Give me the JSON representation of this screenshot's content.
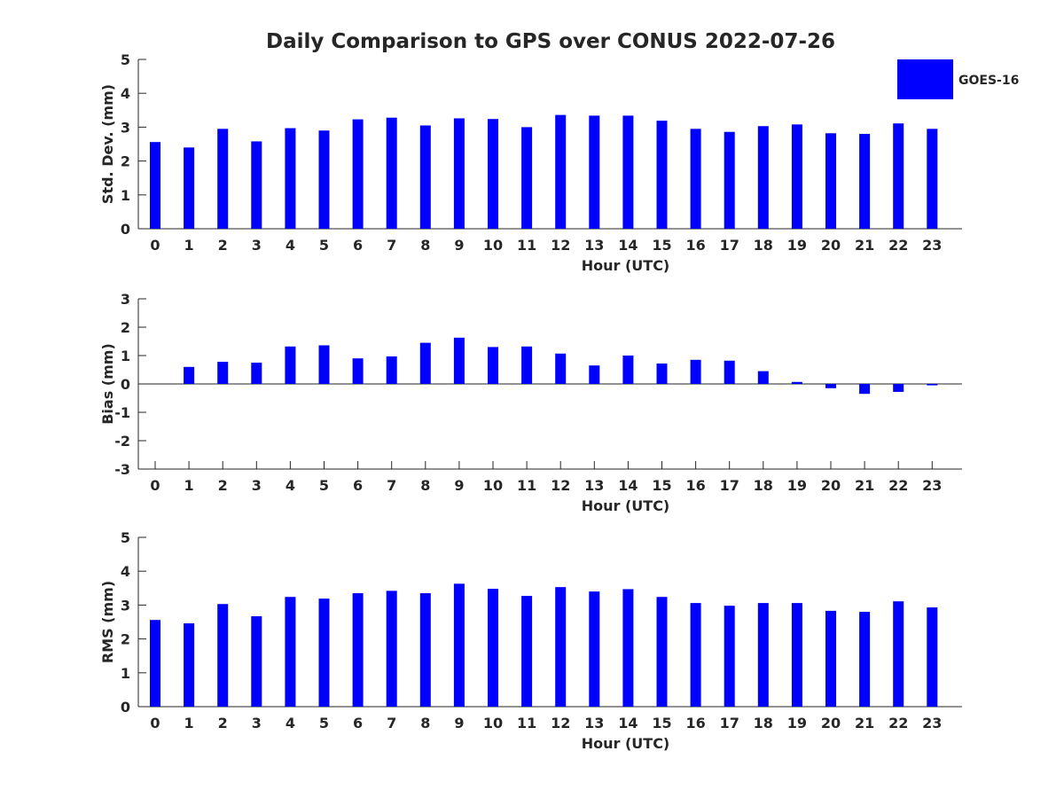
{
  "title": "Daily Comparison to GPS over CONUS 2022-07-26",
  "legend": {
    "label": "GOES-16",
    "color": "#0000ff"
  },
  "chart_data": [
    {
      "type": "bar",
      "ylabel": "Std. Dev. (mm)",
      "xlabel": "Hour (UTC)",
      "ylim": [
        0,
        5
      ],
      "yticks": [
        0,
        1,
        2,
        3,
        4,
        5
      ],
      "xlim": [
        -0.5,
        23.9
      ],
      "categories": [
        0,
        1,
        2,
        3,
        4,
        5,
        6,
        7,
        8,
        9,
        10,
        11,
        12,
        13,
        14,
        15,
        16,
        17,
        18,
        19,
        20,
        21,
        22,
        23
      ],
      "series": [
        {
          "name": "GOES-16",
          "color": "#0000ff",
          "values": [
            2.56,
            2.4,
            2.95,
            2.58,
            2.97,
            2.9,
            3.23,
            3.28,
            3.05,
            3.26,
            3.24,
            3.0,
            3.36,
            3.34,
            3.34,
            3.19,
            2.95,
            2.86,
            3.03,
            3.08,
            2.82,
            2.8,
            3.11,
            2.95
          ]
        }
      ]
    },
    {
      "type": "bar",
      "ylabel": "Bias (mm)",
      "xlabel": "Hour (UTC)",
      "ylim": [
        -3,
        3
      ],
      "yticks": [
        -3,
        -2,
        -1,
        0,
        1,
        2,
        3
      ],
      "xlim": [
        -0.5,
        23.9
      ],
      "categories": [
        0,
        1,
        2,
        3,
        4,
        5,
        6,
        7,
        8,
        9,
        10,
        11,
        12,
        13,
        14,
        15,
        16,
        17,
        18,
        19,
        20,
        21,
        22,
        23
      ],
      "series": [
        {
          "name": "GOES-16",
          "color": "#0000ff",
          "values": [
            0.0,
            0.6,
            0.78,
            0.75,
            1.32,
            1.36,
            0.9,
            0.97,
            1.45,
            1.63,
            1.3,
            1.32,
            1.07,
            0.65,
            1.0,
            0.72,
            0.85,
            0.82,
            0.45,
            0.07,
            -0.15,
            -0.35,
            -0.28,
            -0.05
          ]
        }
      ]
    },
    {
      "type": "bar",
      "ylabel": "RMS (mm)",
      "xlabel": "Hour (UTC)",
      "ylim": [
        0,
        5
      ],
      "yticks": [
        0,
        1,
        2,
        3,
        4,
        5
      ],
      "xlim": [
        -0.5,
        23.9
      ],
      "categories": [
        0,
        1,
        2,
        3,
        4,
        5,
        6,
        7,
        8,
        9,
        10,
        11,
        12,
        13,
        14,
        15,
        16,
        17,
        18,
        19,
        20,
        21,
        22,
        23
      ],
      "series": [
        {
          "name": "GOES-16",
          "color": "#0000ff",
          "values": [
            2.56,
            2.46,
            3.03,
            2.67,
            3.24,
            3.19,
            3.35,
            3.42,
            3.35,
            3.63,
            3.48,
            3.27,
            3.53,
            3.4,
            3.47,
            3.24,
            3.06,
            2.98,
            3.06,
            3.06,
            2.83,
            2.8,
            3.11,
            2.93
          ]
        }
      ]
    }
  ]
}
